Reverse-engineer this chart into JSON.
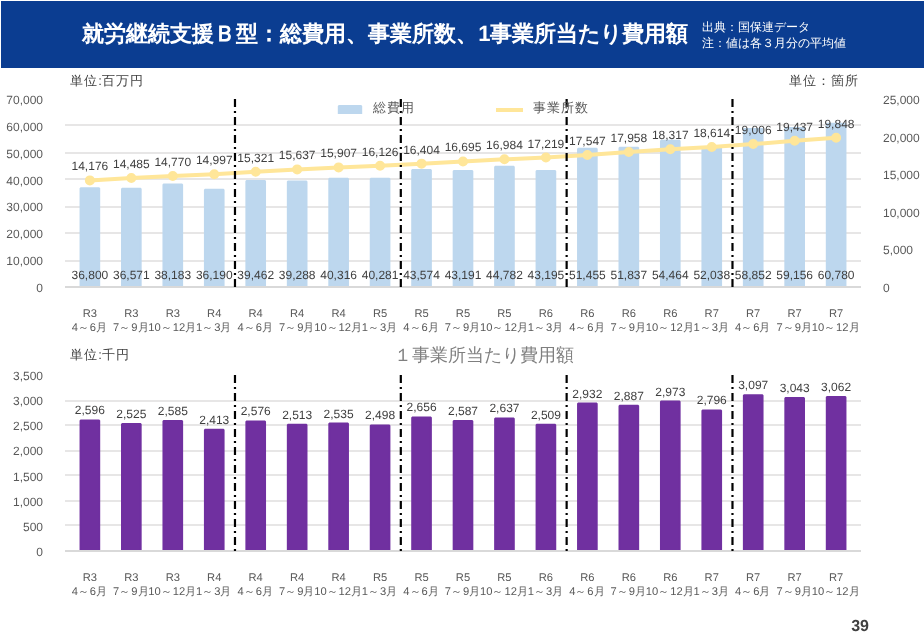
{
  "chart_data": [
    {
      "type": "bar",
      "title": "就労継続支援Ｂ型：総費用、事業所数、1事業所当たり費用額",
      "annotations": [
        "出典：国保連データ",
        "注：値は各３月分の平均値"
      ],
      "categories": [
        "R3\n4～6月",
        "R3\n7～9月",
        "R3\n10～12月",
        "R4\n1～3月",
        "R4\n4～6月",
        "R4\n7～9月",
        "R4\n10～12月",
        "R5\n1～3月",
        "R5\n4～6月",
        "R5\n7～9月",
        "R5\n10～12月",
        "R6\n1～3月",
        "R6\n4～6月",
        "R6\n7～9月",
        "R6\n10～12月",
        "R7\n1～3月",
        "R7\n4～6月",
        "R7\n7～9月",
        "R7\n10～12月"
      ],
      "ylabel": "単位:百万円",
      "y2label": "単位：箇所",
      "ylim": [
        0,
        70000
      ],
      "yticks": [
        {
          "value": 0,
          "label": "0"
        },
        {
          "value": 10000,
          "label": "10,000"
        },
        {
          "value": 20000,
          "label": "20,000"
        },
        {
          "value": 30000,
          "label": "30,000"
        },
        {
          "value": 40000,
          "label": "40,000"
        },
        {
          "value": 50000,
          "label": "50,000"
        },
        {
          "value": 60000,
          "label": "60,000"
        },
        {
          "value": 70000,
          "label": "70,000"
        }
      ],
      "y2lim": [
        0,
        25000
      ],
      "y2ticks": [
        {
          "value": 0,
          "label": "0"
        },
        {
          "value": 5000,
          "label": "5,000"
        },
        {
          "value": 10000,
          "label": "10,000"
        },
        {
          "value": 15000,
          "label": "15,000"
        },
        {
          "value": 20000,
          "label": "20,000"
        },
        {
          "value": 25000,
          "label": "25,000"
        }
      ],
      "series": [
        {
          "name": "総費用",
          "color": "#bdd7ee",
          "values": [
            36800,
            36571,
            38183,
            36190,
            39462,
            39288,
            40316,
            40281,
            43574,
            43191,
            44782,
            43195,
            51455,
            51837,
            54464,
            52038,
            58852,
            59156,
            60780
          ],
          "value_labels": [
            "36,800",
            "36,571",
            "38,183",
            "36,190",
            "39,462",
            "39,288",
            "40,316",
            "40,281",
            "43,574",
            "43,191",
            "44,782",
            "43,195",
            "51,455",
            "51,837",
            "54,464",
            "52,038",
            "58,852",
            "59,156",
            "60,780"
          ]
        },
        {
          "name": "事業所数",
          "type": "line",
          "axis": "y2",
          "color": "#ffe699",
          "marker": "circle",
          "values": [
            14176,
            14485,
            14770,
            14997,
            15321,
            15637,
            15907,
            16126,
            16404,
            16695,
            16984,
            17219,
            17547,
            17958,
            18317,
            18614,
            19006,
            19437,
            19848
          ],
          "value_labels": [
            "14,176",
            "14,485",
            "14,770",
            "14,997",
            "15,321",
            "15,637",
            "15,907",
            "16,126",
            "16,404",
            "16,695",
            "16,984",
            "17,219",
            "17,547",
            "17,958",
            "18,317",
            "18,614",
            "19,006",
            "19,437",
            "19,848"
          ]
        }
      ],
      "grid": "y",
      "legend": "top"
    },
    {
      "type": "bar",
      "title": "１事業所当たり費用額",
      "annotations": [
        "39"
      ],
      "categories": [
        "R3\n4～6月",
        "R3\n7～9月",
        "R3\n10～12月",
        "R4\n1～3月",
        "R4\n4～6月",
        "R4\n7～9月",
        "R4\n10～12月",
        "R5\n1～3月",
        "R5\n4～6月",
        "R5\n7～9月",
        "R5\n10～12月",
        "R6\n1～3月",
        "R6\n4～6月",
        "R6\n7～9月",
        "R6\n10～12月",
        "R7\n1～3月",
        "R7\n4～6月",
        "R7\n7～9月",
        "R7\n10～12月"
      ],
      "ylabel": "単位:千円",
      "ylim": [
        0,
        3500
      ],
      "yticks": [
        {
          "value": 0,
          "label": "0"
        },
        {
          "value": 500,
          "label": "500"
        },
        {
          "value": 1000,
          "label": "1,000"
        },
        {
          "value": 1500,
          "label": "1,500"
        },
        {
          "value": 2000,
          "label": "2,000"
        },
        {
          "value": 2500,
          "label": "2,500"
        },
        {
          "value": 3000,
          "label": "3,000"
        },
        {
          "value": 3500,
          "label": "3,500"
        }
      ],
      "series": [
        {
          "color": "#7030a0",
          "values": [
            2596,
            2525,
            2585,
            2413,
            2576,
            2513,
            2535,
            2498,
            2656,
            2587,
            2637,
            2509,
            2932,
            2887,
            2973,
            2796,
            3097,
            3043,
            3062
          ],
          "value_labels": [
            "2,596",
            "2,525",
            "2,585",
            "2,413",
            "2,576",
            "2,513",
            "2,535",
            "2,498",
            "2,656",
            "2,587",
            "2,637",
            "2,509",
            "2,932",
            "2,887",
            "2,973",
            "2,796",
            "3,097",
            "3,043",
            "3,062"
          ]
        }
      ],
      "grid": "y"
    }
  ]
}
